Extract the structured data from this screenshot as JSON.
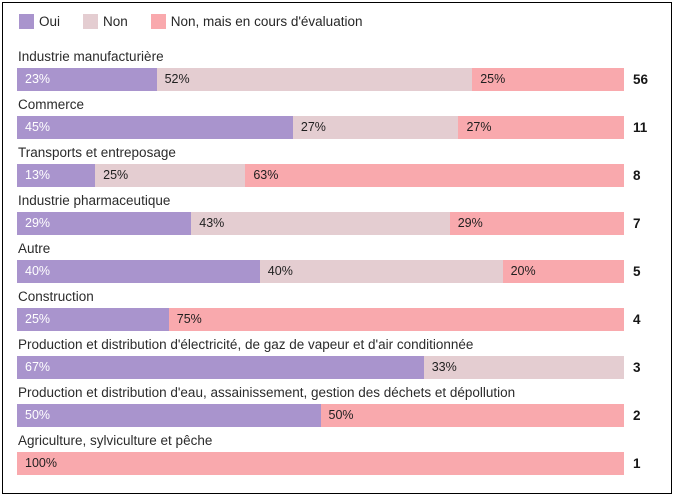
{
  "colors": {
    "oui": "#a994cd",
    "non": "#e4cdd1",
    "non_eval": "#f9a9ad",
    "text_dark": "#1f1f1f",
    "text_light": "#ffffff",
    "frame_border": "#000000",
    "background": "#ffffff"
  },
  "chart_data": {
    "type": "bar",
    "orientation": "horizontal",
    "stacked": true,
    "unit": "%",
    "legend_position": "top",
    "grid": false,
    "series": [
      {
        "name": "Oui",
        "color": "#a994cd",
        "text_color": "#ffffff"
      },
      {
        "name": "Non",
        "color": "#e4cdd1",
        "text_color": "#1f1f1f"
      },
      {
        "name": "Non, mais en cours d'évaluation",
        "color": "#f9a9ad",
        "text_color": "#1f1f1f"
      }
    ],
    "rows": [
      {
        "category": "Industrie manufacturière",
        "count": 56,
        "segments": [
          {
            "series": "Oui",
            "pct": 23,
            "label": "23%"
          },
          {
            "series": "Non",
            "pct": 52,
            "label": "52%"
          },
          {
            "series": "Non, mais en cours d'évaluation",
            "pct": 25,
            "label": "25%"
          }
        ]
      },
      {
        "category": "Commerce",
        "count": 11,
        "segments": [
          {
            "series": "Oui",
            "pct": 45,
            "label": "45%"
          },
          {
            "series": "Non",
            "pct": 27,
            "label": "27%"
          },
          {
            "series": "Non, mais en cours d'évaluation",
            "pct": 27,
            "label": "27%"
          }
        ]
      },
      {
        "category": "Transports et entreposage",
        "count": 8,
        "segments": [
          {
            "series": "Oui",
            "pct": 13,
            "label": "13%"
          },
          {
            "series": "Non",
            "pct": 25,
            "label": "25%"
          },
          {
            "series": "Non, mais en cours d'évaluation",
            "pct": 63,
            "label": "63%"
          }
        ]
      },
      {
        "category": "Industrie pharmaceutique",
        "count": 7,
        "segments": [
          {
            "series": "Oui",
            "pct": 29,
            "label": "29%"
          },
          {
            "series": "Non",
            "pct": 43,
            "label": "43%"
          },
          {
            "series": "Non, mais en cours d'évaluation",
            "pct": 29,
            "label": "29%"
          }
        ]
      },
      {
        "category": "Autre",
        "count": 5,
        "segments": [
          {
            "series": "Oui",
            "pct": 40,
            "label": "40%"
          },
          {
            "series": "Non",
            "pct": 40,
            "label": "40%"
          },
          {
            "series": "Non, mais en cours d'évaluation",
            "pct": 20,
            "label": "20%"
          }
        ]
      },
      {
        "category": "Construction",
        "count": 4,
        "segments": [
          {
            "series": "Oui",
            "pct": 25,
            "label": "25%"
          },
          {
            "series": "Non, mais en cours d'évaluation",
            "pct": 75,
            "label": "75%"
          }
        ]
      },
      {
        "category": "Production et distribution d'électricité, de gaz de vapeur et d'air conditionnée",
        "count": 3,
        "segments": [
          {
            "series": "Oui",
            "pct": 67,
            "label": "67%"
          },
          {
            "series": "Non",
            "pct": 33,
            "label": "33%"
          }
        ]
      },
      {
        "category": "Production et distribution d'eau, assainissement, gestion des déchets et dépollution",
        "count": 2,
        "segments": [
          {
            "series": "Oui",
            "pct": 50,
            "label": "50%"
          },
          {
            "series": "Non, mais en cours d'évaluation",
            "pct": 50,
            "label": "50%"
          }
        ]
      },
      {
        "category": "Agriculture, sylviculture et pêche",
        "count": 1,
        "segments": [
          {
            "series": "Non, mais en cours d'évaluation",
            "pct": 100,
            "label": "100%"
          }
        ]
      }
    ]
  }
}
